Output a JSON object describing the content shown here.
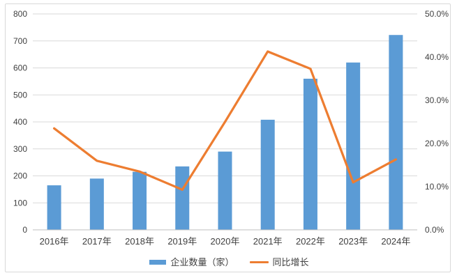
{
  "chart_data": {
    "type": "bar+line combo",
    "categories": [
      "2016年",
      "2017年",
      "2018年",
      "2019年",
      "2020年",
      "2021年",
      "2022年",
      "2023年",
      "2024年"
    ],
    "series": [
      {
        "name": "企业数量（家）",
        "type": "bar",
        "axis": "left",
        "values": [
          165,
          190,
          215,
          235,
          290,
          408,
          560,
          620,
          722
        ]
      },
      {
        "name": "同比增长",
        "type": "line",
        "axis": "right",
        "unit": "%",
        "values": [
          23.5,
          16.0,
          13.5,
          9.3,
          25.0,
          41.3,
          37.3,
          11.0,
          16.3
        ]
      }
    ],
    "left_axis": {
      "min": 0,
      "max": 800,
      "step": 100,
      "tick_labels": [
        "0",
        "100",
        "200",
        "300",
        "400",
        "500",
        "600",
        "700",
        "800"
      ]
    },
    "right_axis": {
      "min": 0,
      "max": 50,
      "step": 10,
      "tick_labels": [
        "0.0%",
        "10.0%",
        "20.0%",
        "30.0%",
        "40.0%",
        "50.0%"
      ]
    },
    "grid": true,
    "legend_position": "bottom",
    "title": ""
  },
  "legend": {
    "bar_label": "企业数量（家）",
    "line_label": "同比增长"
  },
  "colors": {
    "bar": "#5b9bd5",
    "line": "#ed7d31",
    "grid": "#d9d9d9",
    "axis_line": "#bfbfbf",
    "axis_text": "#404040",
    "border": "#d9d9d9"
  }
}
